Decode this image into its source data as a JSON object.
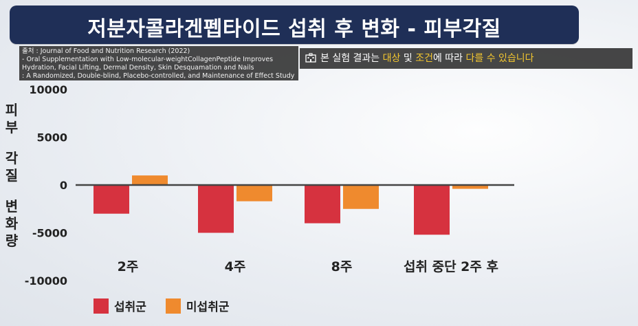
{
  "title": "저분자콜라겐펩타이드 섭취 후 변화 - 피부각질",
  "source": {
    "line1": "출처 : Journal of Food and Nutrition Research (2022)",
    "line2": "- Oral Supplementation with Low-molecular-weightCollagenPeptide Improves",
    "line3": "Hydration, Facial Lifting, Dermal Density, Skin Desquamation and Nails",
    "line4": ": A Randomized, Double-blind, Placebo-controlled, and Maintenance of Effect Study"
  },
  "notice": {
    "icon": "hospital-icon",
    "part1": "본 실험 결과는 ",
    "hl1": "대상",
    "part2": " 및 ",
    "hl2": "조건",
    "part3": "에 따라 ",
    "hl3": "다를 수 있습니다",
    "highlight_color": "#f3c62f"
  },
  "colors": {
    "title_bg": "#1f2f57",
    "series1": "#d6323f",
    "series2": "#ef8a2e"
  },
  "chart_data": {
    "type": "bar",
    "title": "",
    "ylabel": "피부 각질 변화량",
    "xlabel": "",
    "categories": [
      "2주",
      "4주",
      "8주",
      "섭취 중단 2주 후"
    ],
    "series": [
      {
        "name": "섭취군",
        "values": [
          -3000,
          -5000,
          -4000,
          -5200
        ]
      },
      {
        "name": "미섭취군",
        "values": [
          1000,
          -1700,
          -2500,
          -400
        ]
      }
    ],
    "ylim": [
      -10000,
      10000
    ],
    "yticks": [
      10000,
      5000,
      0,
      -5000,
      -10000
    ],
    "grid": false,
    "legend_position": "bottom-left"
  }
}
